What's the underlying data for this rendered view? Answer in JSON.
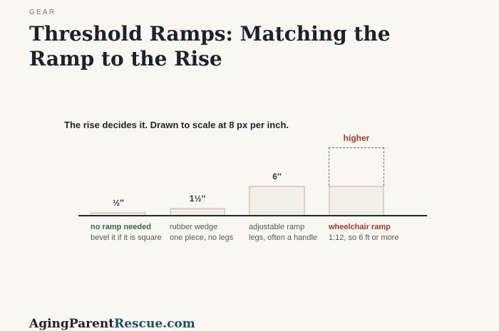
{
  "header": {
    "eyebrow": "GEAR",
    "title": "Threshold Ramps: Matching the Ramp to the Rise"
  },
  "figure": {
    "lede": "The rise decides it. Drawn to scale at 8 px per inch.",
    "options": [
      {
        "rise_label": "½″",
        "rise_inches": 0.5,
        "name": "no ramp needed",
        "note": "bevel it if it is square",
        "name_color": "#2f6b3a"
      },
      {
        "rise_label": "1½″",
        "rise_inches": 1.5,
        "name": "rubber wedge",
        "note": "one piece, no legs",
        "name_color": "#55595e"
      },
      {
        "rise_label": "6″",
        "rise_inches": 6,
        "name": "adjustable ramp",
        "note": "legs, often a handle",
        "name_color": "#55595e"
      },
      {
        "rise_label": "higher",
        "rise_inches": 6,
        "name": "wheelchair ramp",
        "note": "1:12, so 6 ft or more",
        "name_color": "#a63a2a"
      }
    ]
  },
  "footer": {
    "brand_main": "AgingParent",
    "brand_accent": "Rescue.com"
  }
}
